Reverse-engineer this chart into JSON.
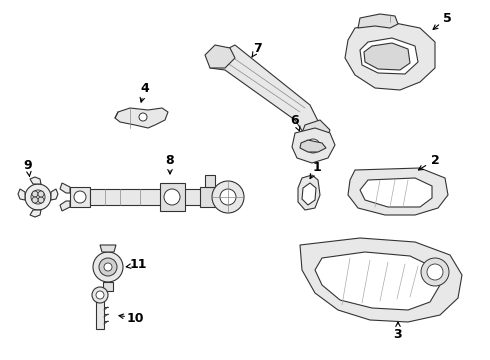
{
  "background_color": "#ffffff",
  "fig_width": 4.9,
  "fig_height": 3.6,
  "dpi": 100,
  "line_color": "#333333",
  "fill_color": "#f5f5f5",
  "label_color": "#000000"
}
